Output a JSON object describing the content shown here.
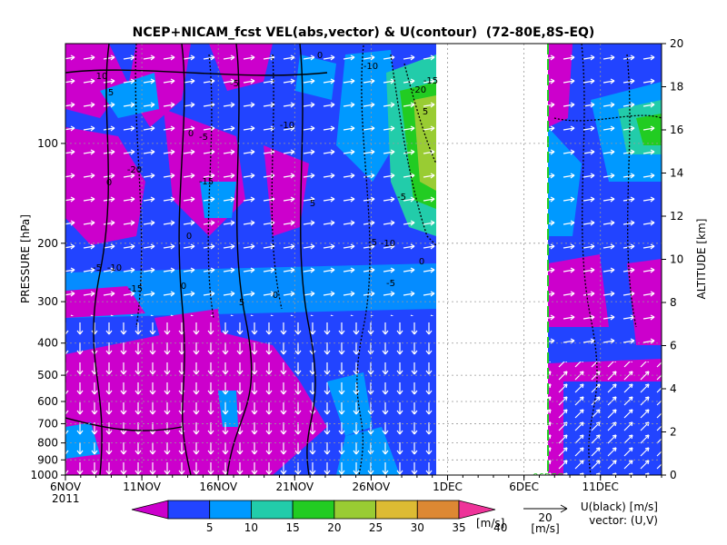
{
  "chart_data": {
    "type": "heatmap",
    "title": "NCEP+NICAM_fcst VEL(abs,vector) & U(contour)  (72-80E,8S-EQ)",
    "ylabel_left": "PRESSURE [hPa]",
    "ylabel_right": "ALTITUDE [km]",
    "x_ticks": [
      "6NOV",
      "11NOV",
      "16NOV",
      "21NOV",
      "26NOV",
      "1DEC",
      "6DEC",
      "11DEC"
    ],
    "x_year": "2011",
    "y_pressure_ticks": [
      100,
      200,
      300,
      400,
      500,
      600,
      700,
      800,
      900,
      1000
    ],
    "y_pressure_range": [
      1000,
      50
    ],
    "y_altitude_ticks": [
      0,
      2,
      4,
      6,
      8,
      10,
      12,
      14,
      16,
      18,
      20
    ],
    "y_altitude_range": [
      0,
      20
    ],
    "colorbar": {
      "levels": [
        5,
        10,
        15,
        20,
        25,
        30,
        35,
        40
      ],
      "colors": [
        "#cc00cc",
        "#2244ff",
        "#0099ff",
        "#22ccaa",
        "#22cc22",
        "#99cc33",
        "#ddbb33",
        "#dd8833",
        "#ee3399"
      ],
      "unit": "[m/s]"
    },
    "vector_key": {
      "value": "20",
      "unit": "[m/s]"
    },
    "legend_right": [
      "U(black) [m/s]",
      "vector: (U,V)"
    ],
    "forecast_start_marker": "06DEC",
    "data_gap": [
      "29NOV",
      "4DEC"
    ],
    "contour_labels": [
      "10",
      "5",
      "0",
      "-5",
      "-10",
      "-15",
      "-20",
      "5",
      "0",
      "-5",
      "-10",
      "-15",
      "-20",
      "0",
      "5",
      "-5",
      "0",
      "-5",
      "-10",
      "-5",
      "-10",
      "-15",
      "0",
      "5",
      "0",
      "-5",
      "0"
    ],
    "grid": true
  }
}
